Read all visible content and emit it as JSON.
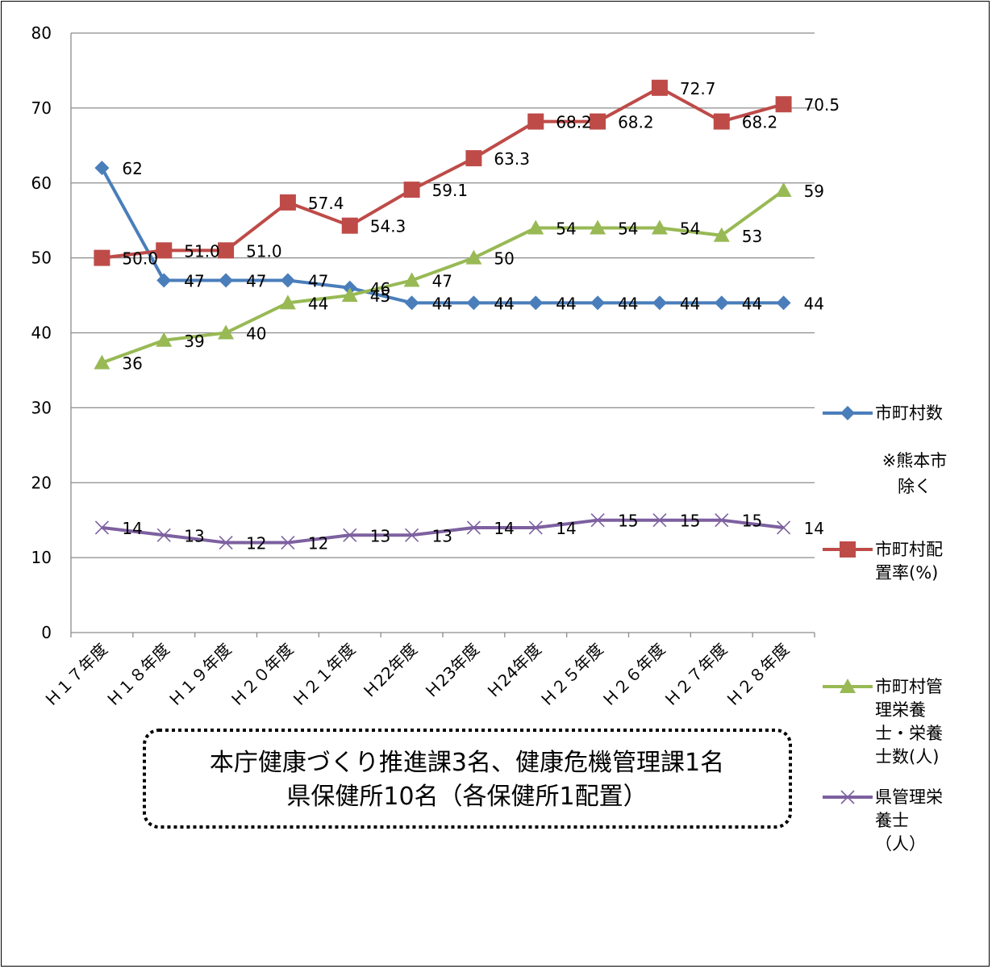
{
  "chart_data": {
    "type": "line",
    "title": "",
    "xlabel": "",
    "ylabel": "",
    "ylim": [
      0,
      80
    ],
    "yticks": [
      0,
      10,
      20,
      30,
      40,
      50,
      60,
      70,
      80
    ],
    "grid": true,
    "legend_position": "right",
    "categories": [
      "Ｈ１７年度",
      "Ｈ１８年度",
      "Ｈ１９年度",
      "Ｈ２０年度",
      "Ｈ２１年度",
      "Ｈ22年度",
      "Ｈ23年度",
      "Ｈ24年度",
      "Ｈ２５年度",
      "Ｈ２６年度",
      "Ｈ２７年度",
      "Ｈ２８年度"
    ],
    "series": [
      {
        "name": "市町村数",
        "color": "#4a7ebb",
        "marker": "diamond",
        "values": [
          62,
          47,
          47,
          47,
          46,
          44,
          44,
          44,
          44,
          44,
          44,
          44
        ],
        "labels": [
          "62",
          "47",
          "47",
          "47",
          "46",
          "44",
          "44",
          "44",
          "44",
          "44",
          "44",
          "44"
        ]
      },
      {
        "name": "市町村配置率(%)",
        "color": "#be4b48",
        "marker": "square",
        "values": [
          50.0,
          51.0,
          51.0,
          57.4,
          54.3,
          59.1,
          63.3,
          68.2,
          68.2,
          72.7,
          68.2,
          70.5
        ],
        "labels": [
          "50.0",
          "51.0",
          "51.0",
          "57.4",
          "54.3",
          "59.1",
          "63.3",
          "68.2",
          "68.2",
          "72.7",
          "68.2",
          "70.5"
        ]
      },
      {
        "name": "市町村管理栄養士・栄養士数(人)",
        "color": "#98b954",
        "marker": "triangle",
        "values": [
          36,
          39,
          40,
          44,
          45,
          47,
          50,
          54,
          54,
          54,
          53,
          59
        ],
        "labels": [
          "36",
          "39",
          "40",
          "44",
          "45",
          "47",
          "50",
          "54",
          "54",
          "54",
          "53",
          "59"
        ]
      },
      {
        "name": "県管理栄養士（人）",
        "color": "#7d60a0",
        "marker": "x",
        "values": [
          14,
          13,
          12,
          12,
          13,
          13,
          14,
          14,
          15,
          15,
          15,
          14
        ],
        "labels": [
          "14",
          "13",
          "12",
          "12",
          "13",
          "13",
          "14",
          "14",
          "15",
          "15",
          "15",
          "14"
        ]
      }
    ],
    "legend_note_lines": [
      "※熊本市",
      "除く"
    ],
    "legend_lines": [
      [
        "市町村数"
      ],
      [
        "市町村配",
        "置率(%)"
      ],
      [
        "市町村管",
        "理栄養",
        "士・栄養",
        "士数(人)"
      ],
      [
        "県管理栄",
        "養士",
        "（人）"
      ]
    ],
    "annotation_lines": [
      "本庁健康づくり推進課3名、健康危機管理課1名",
      "県保健所10名（各保健所1配置）"
    ]
  }
}
